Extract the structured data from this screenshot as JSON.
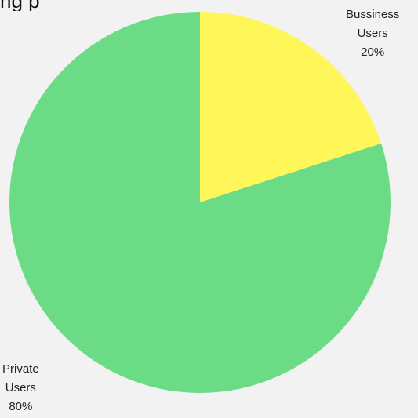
{
  "chart_data": {
    "type": "pie",
    "title": "ng p",
    "start_angle_deg": 0,
    "direction": "clockwise",
    "slices": [
      {
        "label": "Bussiness Users",
        "label_lines": [
          "Bussiness",
          "Users"
        ],
        "value": 20,
        "value_label": "20%",
        "color": "#fff65a"
      },
      {
        "label": "Private Users",
        "label_lines": [
          "Private",
          "Users"
        ],
        "value": 80,
        "value_label": "80%",
        "color": "#6cdb86"
      }
    ]
  }
}
